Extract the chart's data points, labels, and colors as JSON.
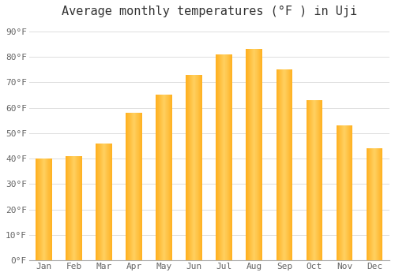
{
  "title": "Average monthly temperatures (°F ) in Uji",
  "months": [
    "Jan",
    "Feb",
    "Mar",
    "Apr",
    "May",
    "Jun",
    "Jul",
    "Aug",
    "Sep",
    "Oct",
    "Nov",
    "Dec"
  ],
  "values": [
    40,
    41,
    46,
    58,
    65,
    73,
    81,
    83,
    75,
    63,
    53,
    44
  ],
  "bar_color_main": "#FFB020",
  "bar_color_light": "#FFD060",
  "bar_color_dark": "#E08800",
  "background_color": "#FFFFFF",
  "plot_bg_color": "#FFFFFF",
  "yticks": [
    0,
    10,
    20,
    30,
    40,
    50,
    60,
    70,
    80,
    90
  ],
  "ylim": [
    0,
    93
  ],
  "title_fontsize": 11,
  "tick_fontsize": 8,
  "grid_color": "#DDDDDD",
  "text_color": "#666666",
  "bar_width": 0.55
}
